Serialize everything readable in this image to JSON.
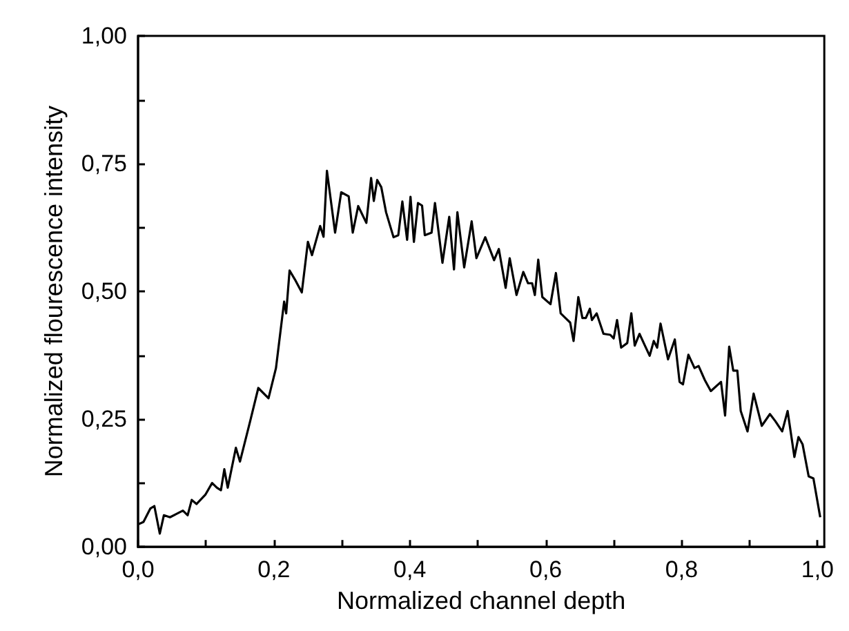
{
  "chart_data": {
    "type": "line",
    "xlabel": "Normalized channel depth",
    "ylabel": "Normalized flourescence intensity",
    "xlim": [
      0,
      1.01
    ],
    "ylim": [
      0,
      1
    ],
    "xticks": [
      {
        "value": 0,
        "label": "0,0"
      },
      {
        "value": 0.1,
        "label": null
      },
      {
        "value": 0.2,
        "label": "0,2"
      },
      {
        "value": 0.3,
        "label": null
      },
      {
        "value": 0.4,
        "label": "0,4"
      },
      {
        "value": 0.5,
        "label": null
      },
      {
        "value": 0.6,
        "label": "0,6"
      },
      {
        "value": 0.7,
        "label": null
      },
      {
        "value": 0.8,
        "label": "0,8"
      },
      {
        "value": 0.9,
        "label": null
      },
      {
        "value": 1,
        "label": "1,0"
      }
    ],
    "yticks": [
      {
        "value": 0,
        "label": "0,00"
      },
      {
        "value": 0.125,
        "label": null
      },
      {
        "value": 0.25,
        "label": "0,25"
      },
      {
        "value": 0.375,
        "label": null
      },
      {
        "value": 0.5,
        "label": "0,50"
      },
      {
        "value": 0.625,
        "label": null
      },
      {
        "value": 0.75,
        "label": "0,75"
      },
      {
        "value": 0.875,
        "label": null
      },
      {
        "value": 1,
        "label": "1,00"
      }
    ],
    "grid": false,
    "marker": "none",
    "line_style": "solid",
    "series": [
      {
        "color": "#000000",
        "x": [
          0.0,
          0.008,
          0.018,
          0.024,
          0.032,
          0.038,
          0.047,
          0.066,
          0.073,
          0.079,
          0.086,
          0.099,
          0.109,
          0.116,
          0.122,
          0.127,
          0.132,
          0.144,
          0.15,
          0.165,
          0.177,
          0.192,
          0.203,
          0.215,
          0.218,
          0.223,
          0.231,
          0.241,
          0.25,
          0.256,
          0.268,
          0.273,
          0.278,
          0.29,
          0.299,
          0.31,
          0.316,
          0.324,
          0.336,
          0.343,
          0.347,
          0.352,
          0.358,
          0.365,
          0.376,
          0.383,
          0.389,
          0.396,
          0.401,
          0.406,
          0.412,
          0.418,
          0.422,
          0.432,
          0.437,
          0.448,
          0.458,
          0.465,
          0.47,
          0.48,
          0.491,
          0.498,
          0.511,
          0.524,
          0.531,
          0.541,
          0.547,
          0.557,
          0.567,
          0.574,
          0.58,
          0.584,
          0.589,
          0.595,
          0.607,
          0.615,
          0.622,
          0.629,
          0.636,
          0.641,
          0.648,
          0.654,
          0.659,
          0.665,
          0.668,
          0.675,
          0.685,
          0.695,
          0.7,
          0.705,
          0.711,
          0.72,
          0.726,
          0.731,
          0.738,
          0.746,
          0.753,
          0.759,
          0.764,
          0.769,
          0.78,
          0.79,
          0.797,
          0.802,
          0.81,
          0.819,
          0.825,
          0.834,
          0.843,
          0.858,
          0.864,
          0.87,
          0.876,
          0.882,
          0.887,
          0.897,
          0.906,
          0.918,
          0.93,
          0.938,
          0.948,
          0.956,
          0.966,
          0.972,
          0.978,
          0.987,
          0.994,
          1.004
        ],
        "values": [
          0.044,
          0.049,
          0.075,
          0.08,
          0.026,
          0.062,
          0.058,
          0.071,
          0.062,
          0.092,
          0.084,
          0.102,
          0.125,
          0.116,
          0.111,
          0.152,
          0.116,
          0.194,
          0.167,
          0.246,
          0.311,
          0.291,
          0.35,
          0.48,
          0.457,
          0.541,
          0.523,
          0.498,
          0.597,
          0.571,
          0.628,
          0.607,
          0.736,
          0.615,
          0.694,
          0.686,
          0.615,
          0.667,
          0.634,
          0.722,
          0.677,
          0.718,
          0.704,
          0.655,
          0.606,
          0.61,
          0.676,
          0.601,
          0.685,
          0.597,
          0.673,
          0.668,
          0.61,
          0.615,
          0.673,
          0.556,
          0.646,
          0.543,
          0.655,
          0.547,
          0.637,
          0.565,
          0.606,
          0.561,
          0.583,
          0.507,
          0.565,
          0.493,
          0.538,
          0.516,
          0.516,
          0.493,
          0.562,
          0.489,
          0.475,
          0.536,
          0.457,
          0.448,
          0.439,
          0.403,
          0.489,
          0.448,
          0.448,
          0.466,
          0.444,
          0.457,
          0.417,
          0.415,
          0.408,
          0.444,
          0.39,
          0.399,
          0.457,
          0.394,
          0.417,
          0.394,
          0.374,
          0.403,
          0.39,
          0.437,
          0.367,
          0.406,
          0.323,
          0.318,
          0.376,
          0.35,
          0.354,
          0.327,
          0.305,
          0.323,
          0.257,
          0.392,
          0.345,
          0.345,
          0.266,
          0.226,
          0.3,
          0.237,
          0.26,
          0.246,
          0.226,
          0.266,
          0.176,
          0.215,
          0.201,
          0.138,
          0.134,
          0.058
        ]
      }
    ]
  }
}
